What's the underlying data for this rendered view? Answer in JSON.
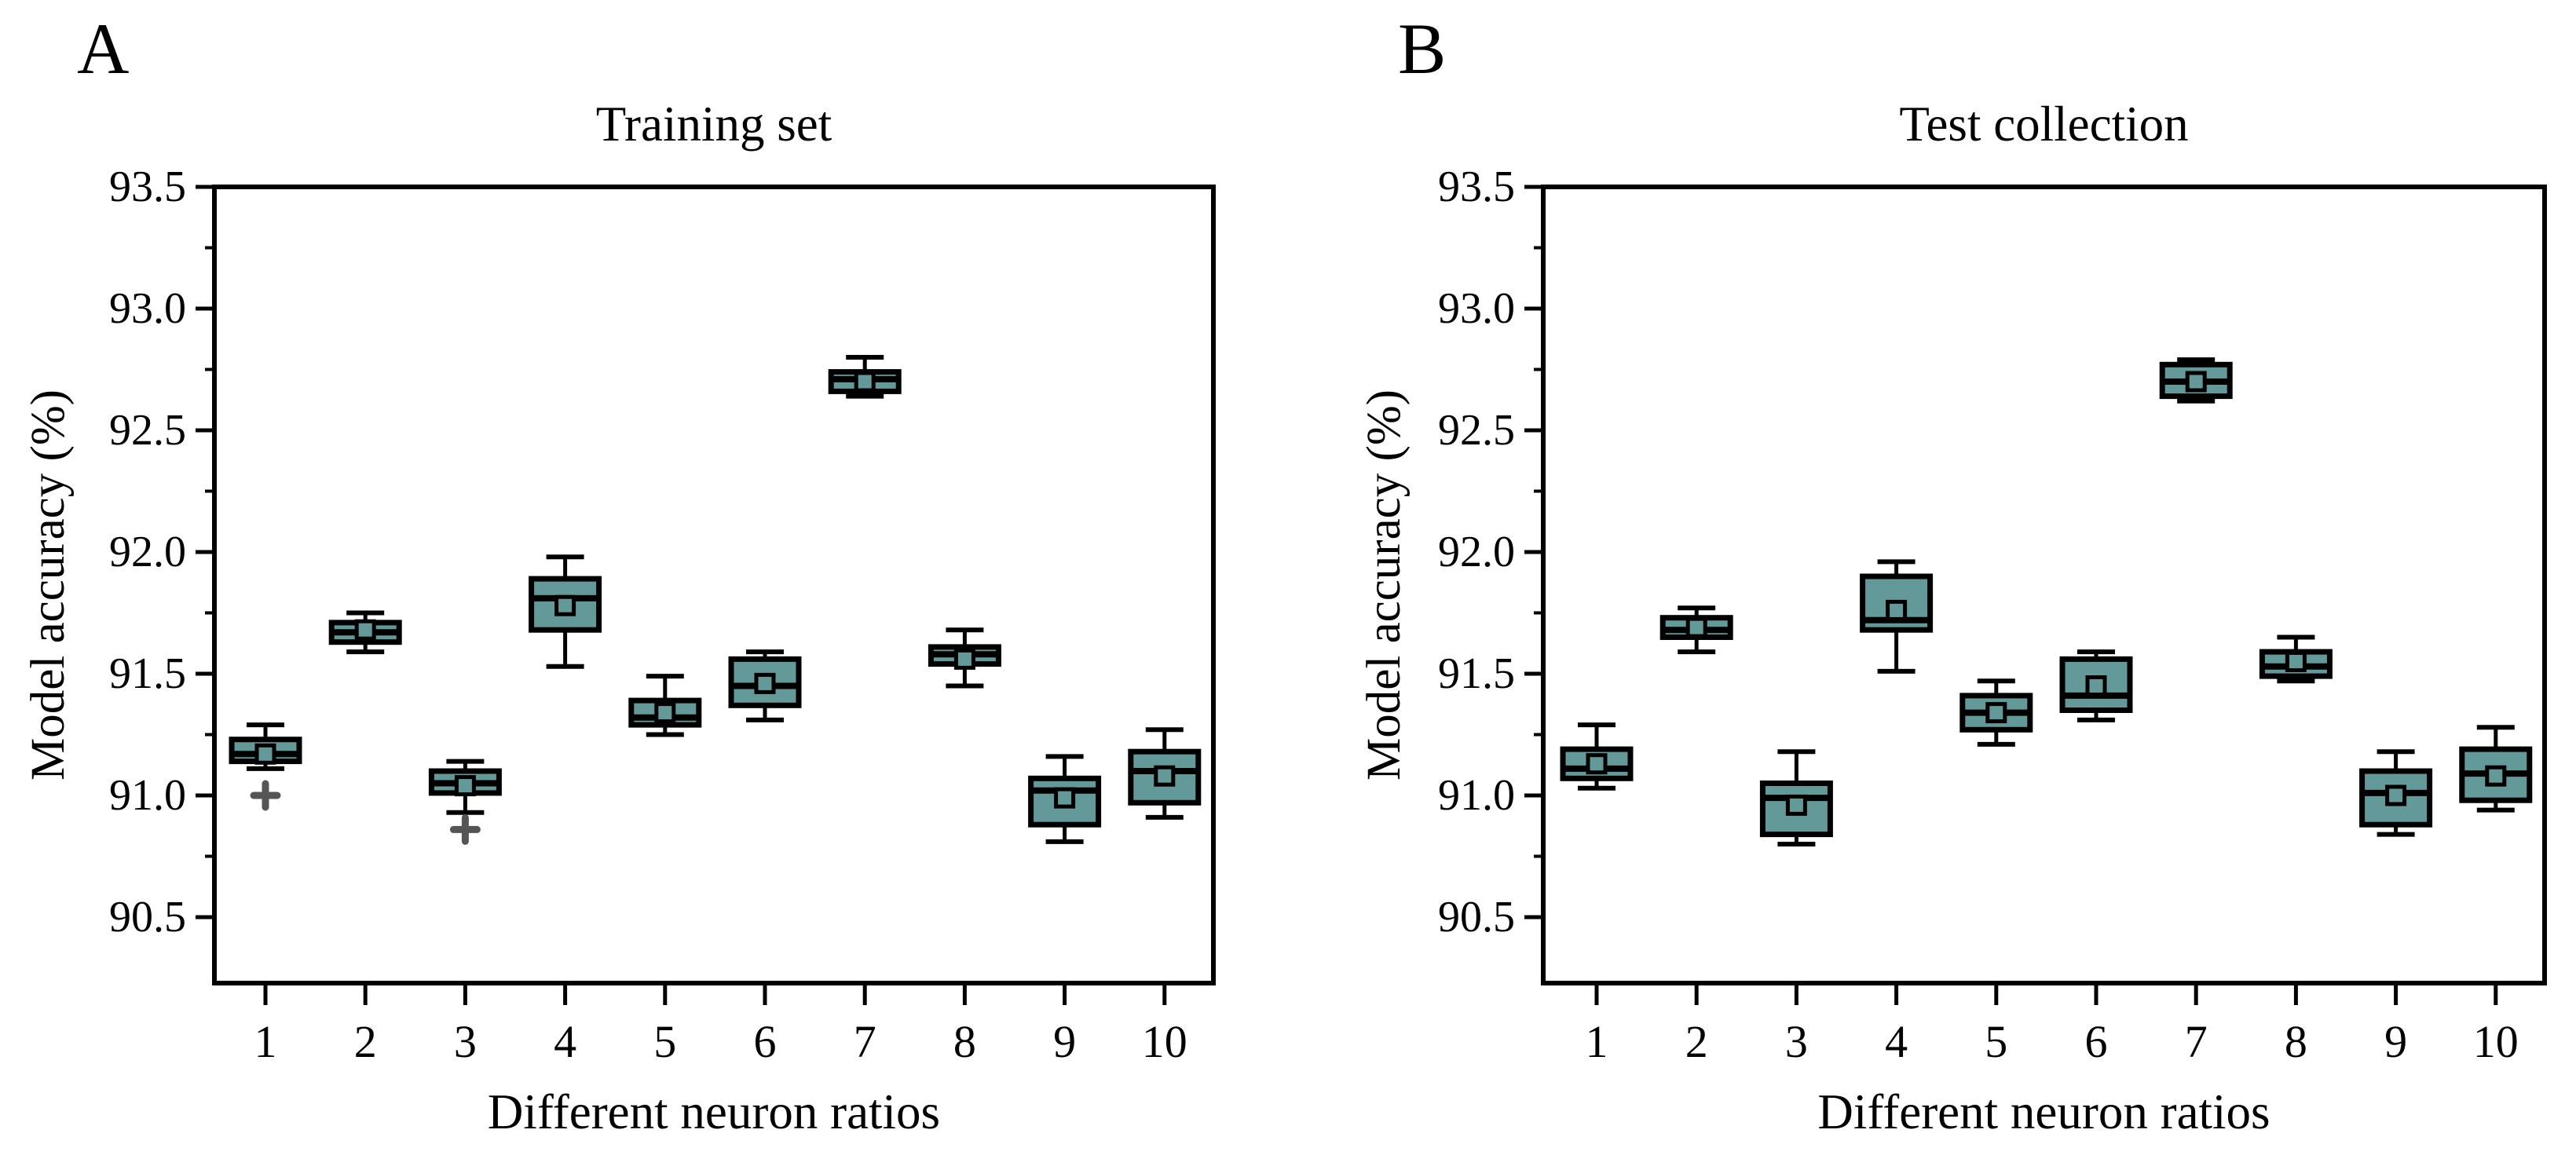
{
  "colors": {
    "box_fill": "#649999",
    "box_stroke": "#000000",
    "outlier_marker": "#555555",
    "text": "#000000",
    "background": "#ffffff"
  },
  "chart_data": [
    {
      "type": "box",
      "panel_label": "A",
      "title": "Training set",
      "xlabel": "Different neuron ratios",
      "ylabel": "Model accuracy (%)",
      "categories": [
        "1",
        "2",
        "3",
        "4",
        "5",
        "6",
        "7",
        "8",
        "9",
        "10"
      ],
      "ylim": [
        90.22,
        93.5
      ],
      "y_tick_labels": [
        "93.5",
        "93.0",
        "92.5",
        "92.0",
        "91.5",
        "91.0",
        "90.5"
      ],
      "y_minor_ticks": [
        93.25,
        92.75,
        92.25,
        91.75,
        91.25,
        90.75
      ],
      "grid": false,
      "legend": null,
      "boxes": [
        {
          "category": "1",
          "whisker_low": 91.11,
          "q1": 91.14,
          "median": 91.17,
          "q3": 91.23,
          "whisker_high": 91.29,
          "mean": 91.17,
          "outliers": [
            91.0
          ]
        },
        {
          "category": "2",
          "whisker_low": 91.59,
          "q1": 91.63,
          "median": 91.67,
          "q3": 91.71,
          "whisker_high": 91.75,
          "mean": 91.68,
          "outliers": []
        },
        {
          "category": "3",
          "whisker_low": 90.93,
          "q1": 91.01,
          "median": 91.05,
          "q3": 91.1,
          "whisker_high": 91.14,
          "mean": 91.04,
          "outliers": [
            90.86
          ]
        },
        {
          "category": "4",
          "whisker_low": 91.53,
          "q1": 91.68,
          "median": 91.81,
          "q3": 91.89,
          "whisker_high": 91.98,
          "mean": 91.78,
          "outliers": []
        },
        {
          "category": "5",
          "whisker_low": 91.25,
          "q1": 91.29,
          "median": 91.32,
          "q3": 91.39,
          "whisker_high": 91.49,
          "mean": 91.34,
          "outliers": []
        },
        {
          "category": "6",
          "whisker_low": 91.31,
          "q1": 91.37,
          "median": 91.45,
          "q3": 91.56,
          "whisker_high": 91.59,
          "mean": 91.46,
          "outliers": []
        },
        {
          "category": "7",
          "whisker_low": 92.64,
          "q1": 92.66,
          "median": 92.71,
          "q3": 92.74,
          "whisker_high": 92.8,
          "mean": 92.7,
          "outliers": []
        },
        {
          "category": "8",
          "whisker_low": 91.45,
          "q1": 91.54,
          "median": 91.58,
          "q3": 91.61,
          "whisker_high": 91.68,
          "mean": 91.56,
          "outliers": []
        },
        {
          "category": "9",
          "whisker_low": 90.81,
          "q1": 90.88,
          "median": 91.02,
          "q3": 91.07,
          "whisker_high": 91.16,
          "mean": 90.99,
          "outliers": []
        },
        {
          "category": "10",
          "whisker_low": 90.91,
          "q1": 90.97,
          "median": 91.1,
          "q3": 91.18,
          "whisker_high": 91.27,
          "mean": 91.08,
          "outliers": []
        }
      ]
    },
    {
      "type": "box",
      "panel_label": "B",
      "title": "Test collection",
      "xlabel": "Different neuron ratios",
      "ylabel": "Model accuracy (%)",
      "categories": [
        "1",
        "2",
        "3",
        "4",
        "5",
        "6",
        "7",
        "8",
        "9",
        "10"
      ],
      "ylim": [
        90.22,
        93.5
      ],
      "y_tick_labels": [
        "93.5",
        "93.0",
        "92.5",
        "92.0",
        "91.5",
        "91.0",
        "90.5"
      ],
      "y_minor_ticks": [
        93.25,
        92.75,
        92.25,
        91.75,
        91.25,
        90.75
      ],
      "grid": false,
      "legend": null,
      "boxes": [
        {
          "category": "1",
          "whisker_low": 91.03,
          "q1": 91.07,
          "median": 91.11,
          "q3": 91.19,
          "whisker_high": 91.29,
          "mean": 91.13,
          "outliers": []
        },
        {
          "category": "2",
          "whisker_low": 91.59,
          "q1": 91.65,
          "median": 91.68,
          "q3": 91.73,
          "whisker_high": 91.77,
          "mean": 91.69,
          "outliers": []
        },
        {
          "category": "3",
          "whisker_low": 90.8,
          "q1": 90.84,
          "median": 90.99,
          "q3": 91.05,
          "whisker_high": 91.18,
          "mean": 90.96,
          "outliers": []
        },
        {
          "category": "4",
          "whisker_low": 91.51,
          "q1": 91.68,
          "median": 91.72,
          "q3": 91.9,
          "whisker_high": 91.96,
          "mean": 91.76,
          "outliers": []
        },
        {
          "category": "5",
          "whisker_low": 91.21,
          "q1": 91.27,
          "median": 91.34,
          "q3": 91.41,
          "whisker_high": 91.47,
          "mean": 91.34,
          "outliers": []
        },
        {
          "category": "6",
          "whisker_low": 91.31,
          "q1": 91.35,
          "median": 91.41,
          "q3": 91.56,
          "whisker_high": 91.59,
          "mean": 91.45,
          "outliers": []
        },
        {
          "category": "7",
          "whisker_low": 92.62,
          "q1": 92.64,
          "median": 92.7,
          "q3": 92.77,
          "whisker_high": 92.79,
          "mean": 92.7,
          "outliers": []
        },
        {
          "category": "8",
          "whisker_low": 91.47,
          "q1": 91.49,
          "median": 91.53,
          "q3": 91.59,
          "whisker_high": 91.65,
          "mean": 91.55,
          "outliers": []
        },
        {
          "category": "9",
          "whisker_low": 90.84,
          "q1": 90.88,
          "median": 91.01,
          "q3": 91.1,
          "whisker_high": 91.18,
          "mean": 91.0,
          "outliers": []
        },
        {
          "category": "10",
          "whisker_low": 90.94,
          "q1": 90.98,
          "median": 91.09,
          "q3": 91.19,
          "whisker_high": 91.28,
          "mean": 91.08,
          "outliers": []
        }
      ]
    }
  ]
}
